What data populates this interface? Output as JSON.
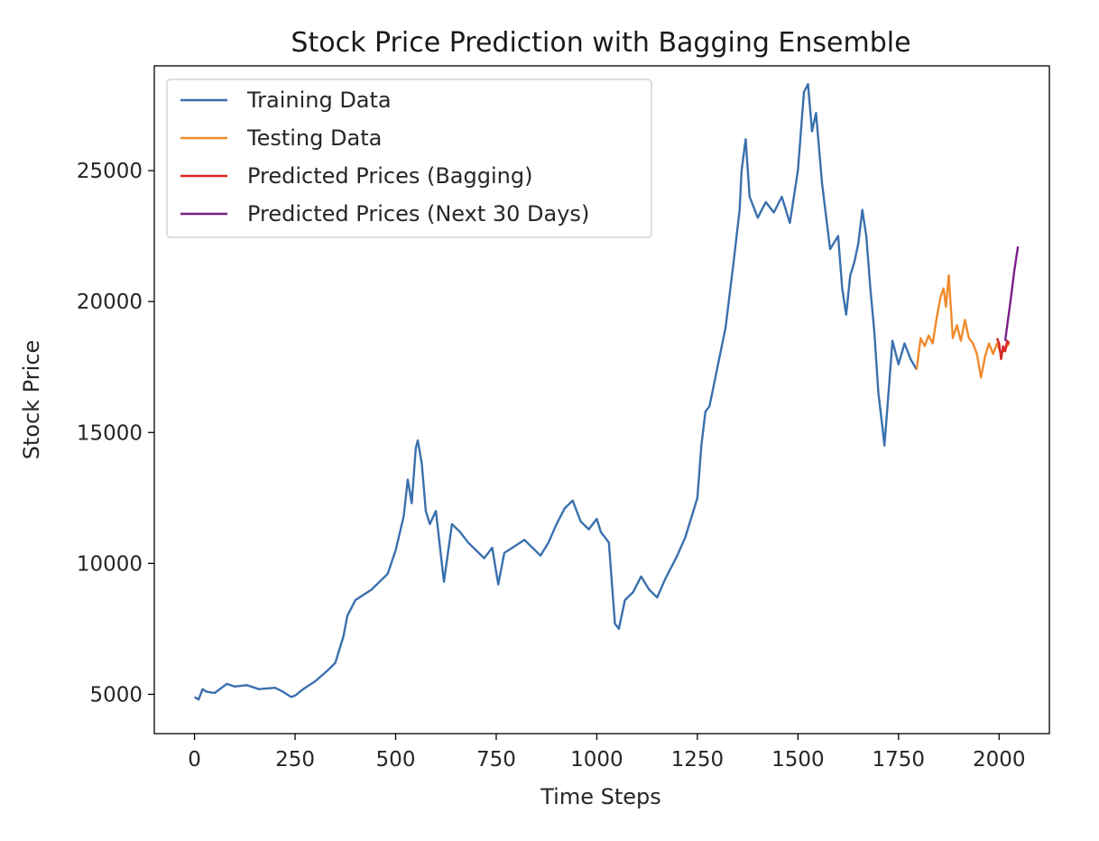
{
  "chart_data": {
    "type": "line",
    "title": "Stock Price Prediction with Bagging Ensemble",
    "xlabel": "Time Steps",
    "ylabel": "Stock Price",
    "xlim": [
      -100,
      2125
    ],
    "ylim": [
      3500,
      29000
    ],
    "xticks": [
      0,
      250,
      500,
      750,
      1000,
      1250,
      1500,
      1750,
      2000
    ],
    "yticks": [
      5000,
      10000,
      15000,
      20000,
      25000
    ],
    "grid": false,
    "legend_position": "upper left",
    "series": [
      {
        "name": "Training Data",
        "color": "#3a70ae",
        "x": [
          0,
          10,
          20,
          30,
          50,
          80,
          100,
          130,
          160,
          200,
          220,
          240,
          250,
          270,
          300,
          330,
          350,
          370,
          380,
          400,
          420,
          440,
          460,
          480,
          500,
          520,
          530,
          540,
          550,
          555,
          565,
          575,
          585,
          600,
          620,
          640,
          660,
          680,
          700,
          720,
          740,
          755,
          770,
          800,
          820,
          840,
          860,
          880,
          900,
          920,
          940,
          950,
          960,
          980,
          1000,
          1010,
          1030,
          1045,
          1055,
          1070,
          1090,
          1110,
          1130,
          1150,
          1170,
          1200,
          1220,
          1250,
          1260,
          1270,
          1280,
          1300,
          1320,
          1340,
          1355,
          1360,
          1370,
          1380,
          1400,
          1420,
          1440,
          1460,
          1480,
          1500,
          1515,
          1525,
          1535,
          1545,
          1560,
          1580,
          1600,
          1610,
          1620,
          1630,
          1640,
          1650,
          1660,
          1670,
          1680,
          1690,
          1700,
          1710,
          1715,
          1725,
          1735,
          1750,
          1765,
          1780,
          1795
        ],
        "values": [
          4900,
          4800,
          5200,
          5100,
          5050,
          5400,
          5300,
          5350,
          5200,
          5250,
          5100,
          4900,
          4950,
          5200,
          5500,
          5900,
          6200,
          7200,
          8000,
          8600,
          8800,
          9000,
          9300,
          9600,
          10500,
          11800,
          13200,
          12300,
          14400,
          14700,
          13800,
          12000,
          11500,
          12000,
          9300,
          11500,
          11200,
          10800,
          10500,
          10200,
          10600,
          9200,
          10400,
          10700,
          10900,
          10600,
          10300,
          10800,
          11500,
          12100,
          12400,
          12000,
          11600,
          11300,
          11700,
          11200,
          10800,
          7700,
          7500,
          8600,
          8900,
          9500,
          9000,
          8700,
          9400,
          10300,
          11000,
          12500,
          14500,
          15800,
          16000,
          17500,
          19000,
          21500,
          23500,
          25000,
          26200,
          24000,
          23200,
          23800,
          23400,
          24000,
          23000,
          25000,
          28000,
          28300,
          26500,
          27200,
          24500,
          22000,
          22500,
          20500,
          19500,
          21000,
          21500,
          22200,
          23500,
          22500,
          20500,
          18800,
          16500,
          15200,
          14500,
          16500,
          18500,
          17600,
          18400,
          17800,
          17400
        ]
      },
      {
        "name": "Testing Data",
        "color": "#ef8a2c",
        "x": [
          1795,
          1805,
          1815,
          1825,
          1835,
          1845,
          1855,
          1862,
          1868,
          1875,
          1885,
          1895,
          1905,
          1915,
          1925,
          1935,
          1945,
          1955,
          1965,
          1975,
          1985,
          1995,
          2005,
          2015,
          2025
        ],
        "values": [
          17400,
          18600,
          18300,
          18700,
          18400,
          19400,
          20200,
          20500,
          19800,
          21000,
          18600,
          19100,
          18500,
          19300,
          18600,
          18400,
          18000,
          17100,
          17900,
          18400,
          18000,
          18400,
          18000,
          18200,
          18400
        ]
      },
      {
        "name": "Predicted Prices (Bagging)",
        "color": "#d62728",
        "x": [
          1995,
          2000,
          2005,
          2010,
          2015,
          2020,
          2025
        ],
        "values": [
          18600,
          18400,
          17800,
          18300,
          18100,
          18500,
          18400
        ]
      },
      {
        "name": "Predicted Prices (Next 30 Days)",
        "color": "#7b1f88",
        "x": [
          2015,
          2022,
          2030,
          2038,
          2047
        ],
        "values": [
          18500,
          19300,
          20200,
          21200,
          22100
        ]
      }
    ]
  }
}
